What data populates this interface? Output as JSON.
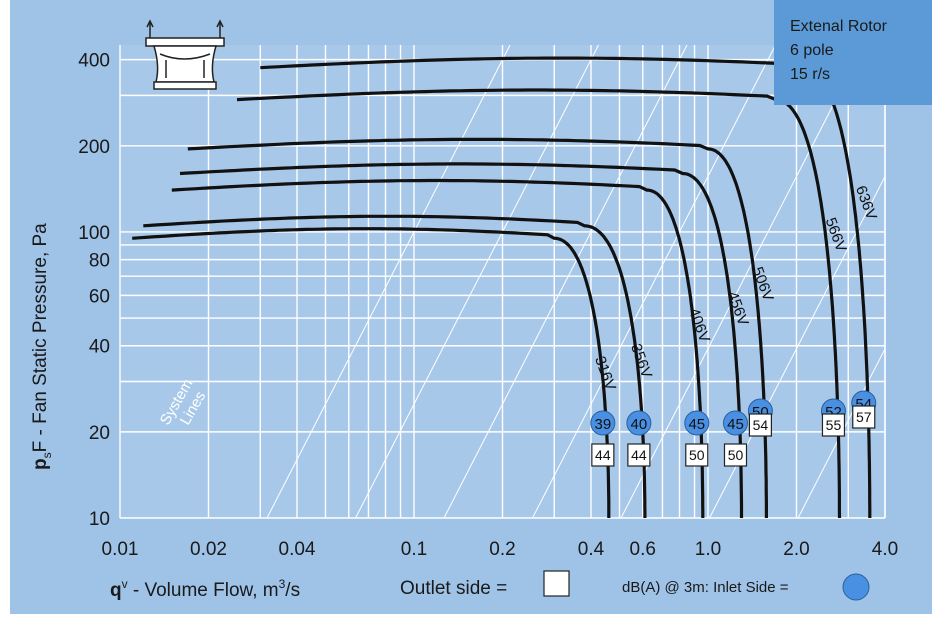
{
  "chart_data": {
    "type": "line",
    "xlabel_main": "q",
    "xlabel_sup": "v",
    "xlabel_rest": " - Volume Flow, m",
    "xlabel_unit_sup": "3",
    "xlabel_unit_tail": "/s",
    "ylabel_main": "p",
    "ylabel_sub": "s",
    "ylabel_rest": "F - Fan Static Pressure, Pa",
    "x_scale": "log",
    "y_scale": "log",
    "xlim": [
      0.01,
      4.0
    ],
    "ylim": [
      10,
      450
    ],
    "x_ticks": [
      {
        "v": 0.01,
        "label": "0.01"
      },
      {
        "v": 0.02,
        "label": "0.02"
      },
      {
        "v": 0.04,
        "label": "0.04"
      },
      {
        "v": 0.1,
        "label": "0.1"
      },
      {
        "v": 0.2,
        "label": "0.2"
      },
      {
        "v": 0.4,
        "label": "0.4"
      },
      {
        "v": 0.6,
        "label": "0.6"
      },
      {
        "v": 1.0,
        "label": "1.0"
      },
      {
        "v": 2.0,
        "label": "2.0"
      },
      {
        "v": 4.0,
        "label": "4.0"
      }
    ],
    "y_ticks": [
      {
        "v": 10,
        "label": "10"
      },
      {
        "v": 20,
        "label": "20"
      },
      {
        "v": 40,
        "label": "40"
      },
      {
        "v": 60,
        "label": "60"
      },
      {
        "v": 80,
        "label": "80"
      },
      {
        "v": 100,
        "label": "100"
      },
      {
        "v": 200,
        "label": "200"
      },
      {
        "v": 400,
        "label": "400"
      }
    ],
    "grid": true,
    "legend_box": {
      "line1": "Extenal Rotor",
      "line2": "6 pole",
      "line3": "15 r/s"
    },
    "outlet_legend": "Outlet side =",
    "inlet_legend": "dB(A) @ 3m:  Inlet Side =",
    "system_lines_label": [
      "System",
      "Lines"
    ],
    "series": [
      {
        "name": "316V",
        "flat_p": 95,
        "x0": 0.011,
        "knee": 0.3,
        "fmax": 0.46,
        "inlet_db": "39",
        "outlet_db": "44"
      },
      {
        "name": "356V",
        "flat_p": 105,
        "x0": 0.012,
        "knee": 0.38,
        "fmax": 0.61,
        "inlet_db": "40",
        "outlet_db": "44"
      },
      {
        "name": "406V",
        "flat_p": 140,
        "x0": 0.015,
        "knee": 0.62,
        "fmax": 0.96,
        "inlet_db": "45",
        "outlet_db": "50"
      },
      {
        "name": "456V",
        "flat_p": 160,
        "x0": 0.016,
        "knee": 0.82,
        "fmax": 1.3,
        "inlet_db": "45",
        "outlet_db": "50"
      },
      {
        "name": "506V",
        "flat_p": 195,
        "x0": 0.017,
        "knee": 1.0,
        "fmax": 1.58,
        "inlet_db": "50",
        "outlet_db": "54"
      },
      {
        "name": "566V",
        "flat_p": 290,
        "x0": 0.025,
        "knee": 1.7,
        "fmax": 2.8,
        "inlet_db": "52",
        "outlet_db": "55"
      },
      {
        "name": "636V",
        "flat_p": 375,
        "x0": 0.03,
        "knee": 2.1,
        "fmax": 3.55,
        "inlet_db": "54",
        "outlet_db": "57"
      }
    ]
  }
}
